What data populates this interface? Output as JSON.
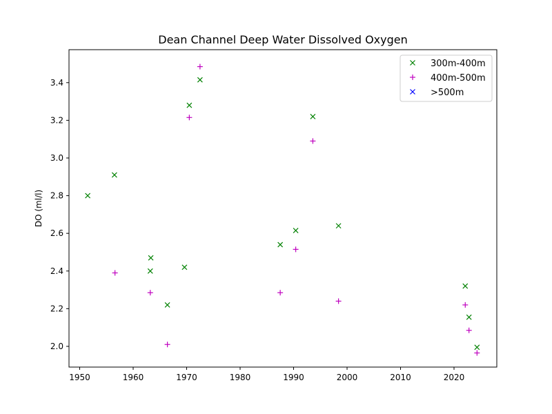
{
  "chart_data": {
    "type": "scatter",
    "title": "Dean Channel Deep Water Dissolved Oxygen",
    "xlabel": "",
    "ylabel": "DO (ml/l)",
    "xlim": [
      1948,
      2028
    ],
    "ylim": [
      1.89,
      3.575
    ],
    "xticks": [
      1950,
      1960,
      1970,
      1980,
      1990,
      2000,
      2010,
      2020
    ],
    "yticks": [
      2.0,
      2.2,
      2.4,
      2.6,
      2.8,
      3.0,
      3.2,
      3.4
    ],
    "grid": false,
    "legend_position": "top-right",
    "series": [
      {
        "name": "300m-400m",
        "marker": "x",
        "color": "#008000",
        "points": [
          [
            1951.5,
            2.8
          ],
          [
            1956.5,
            2.91
          ],
          [
            1963.3,
            2.47
          ],
          [
            1963.2,
            2.4
          ],
          [
            1966.4,
            2.22
          ],
          [
            1969.6,
            2.42
          ],
          [
            1970.5,
            3.28
          ],
          [
            1972.5,
            3.415
          ],
          [
            1987.5,
            2.54
          ],
          [
            1990.4,
            2.615
          ],
          [
            1993.6,
            3.22
          ],
          [
            1998.4,
            2.64
          ],
          [
            2022.1,
            2.32
          ],
          [
            2022.8,
            2.155
          ],
          [
            2024.3,
            1.995
          ]
        ]
      },
      {
        "name": "400m-500m",
        "marker": "+",
        "color": "#bf00bf",
        "points": [
          [
            1956.6,
            2.39
          ],
          [
            1963.2,
            2.285
          ],
          [
            1966.4,
            2.01
          ],
          [
            1970.5,
            3.215
          ],
          [
            1972.5,
            3.485
          ],
          [
            1987.5,
            2.285
          ],
          [
            1990.4,
            2.515
          ],
          [
            1993.6,
            3.09
          ],
          [
            1998.4,
            2.24
          ],
          [
            2022.1,
            2.22
          ],
          [
            2022.8,
            2.085
          ],
          [
            2024.3,
            1.965
          ]
        ]
      },
      {
        "name": ">500m",
        "marker": "x",
        "color": "#0000ff",
        "points": []
      }
    ]
  }
}
